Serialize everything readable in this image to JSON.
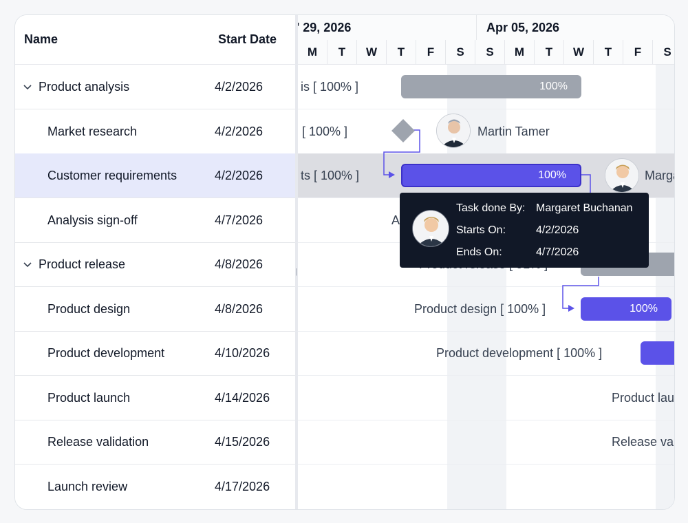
{
  "grid": {
    "headers": {
      "name": "Name",
      "start_date": "Start Date"
    },
    "rows": [
      {
        "name": "Product analysis",
        "date": "4/2/2026",
        "parent": true
      },
      {
        "name": "Market research",
        "date": "4/2/2026"
      },
      {
        "name": "Customer requirements",
        "date": "4/2/2026",
        "selected": true
      },
      {
        "name": "Analysis sign-off",
        "date": "4/7/2026"
      },
      {
        "name": "Product release",
        "date": "4/8/2026",
        "parent": true
      },
      {
        "name": "Product design",
        "date": "4/8/2026"
      },
      {
        "name": "Product development",
        "date": "4/10/2026"
      },
      {
        "name": "Product launch",
        "date": "4/14/2026"
      },
      {
        "name": "Release validation",
        "date": "4/15/2026"
      },
      {
        "name": "Launch review",
        "date": "4/17/2026"
      }
    ]
  },
  "timeline": {
    "weeks": [
      "' 29, 2026",
      "Apr 05, 2026"
    ],
    "days": [
      "M",
      "T",
      "W",
      "T",
      "F",
      "S",
      "S",
      "M",
      "T",
      "W",
      "T",
      "F",
      "S"
    ]
  },
  "chart": {
    "labels": {
      "r0": "is [ 100% ]",
      "r1": "[ 100% ]",
      "r2": "ts [ 100% ]",
      "r3": "Ana",
      "r4": "Product release [ 91% ]",
      "r5": "Product design [ 100% ]",
      "r6": "Product development [ 100% ]",
      "r7": "Product laun",
      "r8": "Release valid"
    },
    "bars": {
      "b0": "100%",
      "b2": "100%",
      "b5": "100%"
    },
    "resources": {
      "martin": "Martin Tamer",
      "margaret": "Margar"
    }
  },
  "tooltip": {
    "k1": "Task done By:",
    "v1": "Margaret Buchanan",
    "k2": "Starts On:",
    "v2": "4/2/2026",
    "k3": "Ends On:",
    "v3": "4/7/2026"
  },
  "colors": {
    "accent": "#5b52e8",
    "accent_border": "#3c31c9",
    "summary": "#9ea4ae",
    "tooltip_bg": "#111827",
    "selected_row": "#e6e9fb"
  },
  "icons": {
    "expand": "chevron-down-icon",
    "splitter": "grip-icon",
    "avatar": "user-avatar-icon"
  }
}
